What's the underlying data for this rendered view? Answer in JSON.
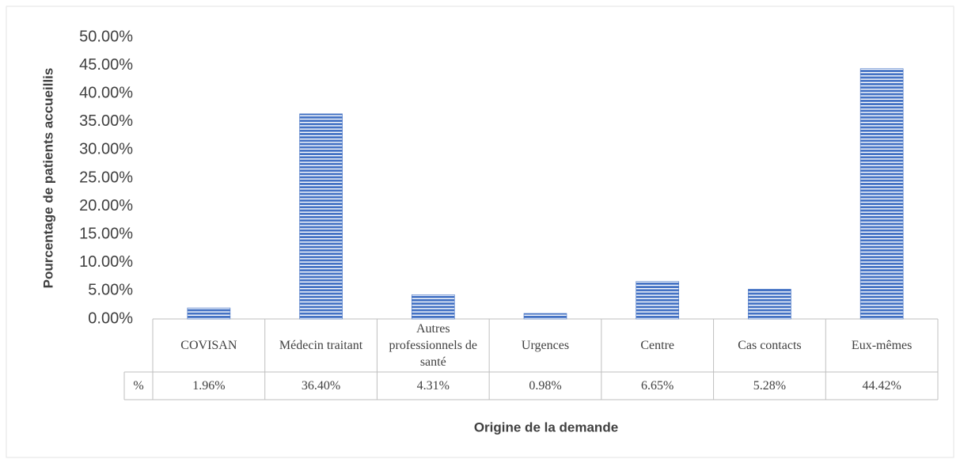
{
  "chart_data": {
    "type": "bar",
    "y_axis_label": "Pourcentage de patients accueillis",
    "x_axis_label": "Origine de la demande",
    "categories": [
      "COVISAN",
      "Médecin traitant",
      "Autres professionnels de santé",
      "Urgences",
      "Centre",
      "Cas contacts",
      "Eux-mêmes"
    ],
    "values": [
      1.96,
      36.4,
      4.31,
      0.98,
      6.65,
      5.28,
      44.42
    ],
    "value_labels": [
      "1.96%",
      "36.40%",
      "4.31%",
      "0.98%",
      "6.65%",
      "5.28%",
      "44.42%"
    ],
    "table_row_label": "%",
    "color": "#4472c4",
    "ylim": [
      0,
      50
    ],
    "yticks": [
      {
        "value": 0,
        "label": "0.00%"
      },
      {
        "value": 5,
        "label": "5.00%"
      },
      {
        "value": 10,
        "label": "10.00%"
      },
      {
        "value": 15,
        "label": "15.00%"
      },
      {
        "value": 20,
        "label": "20.00%"
      },
      {
        "value": 25,
        "label": "25.00%"
      },
      {
        "value": 30,
        "label": "30.00%"
      },
      {
        "value": 35,
        "label": "35.00%"
      },
      {
        "value": 40,
        "label": "40.00%"
      },
      {
        "value": 45,
        "label": "45.00%"
      },
      {
        "value": 50,
        "label": "50.00%"
      }
    ],
    "grid": false
  }
}
